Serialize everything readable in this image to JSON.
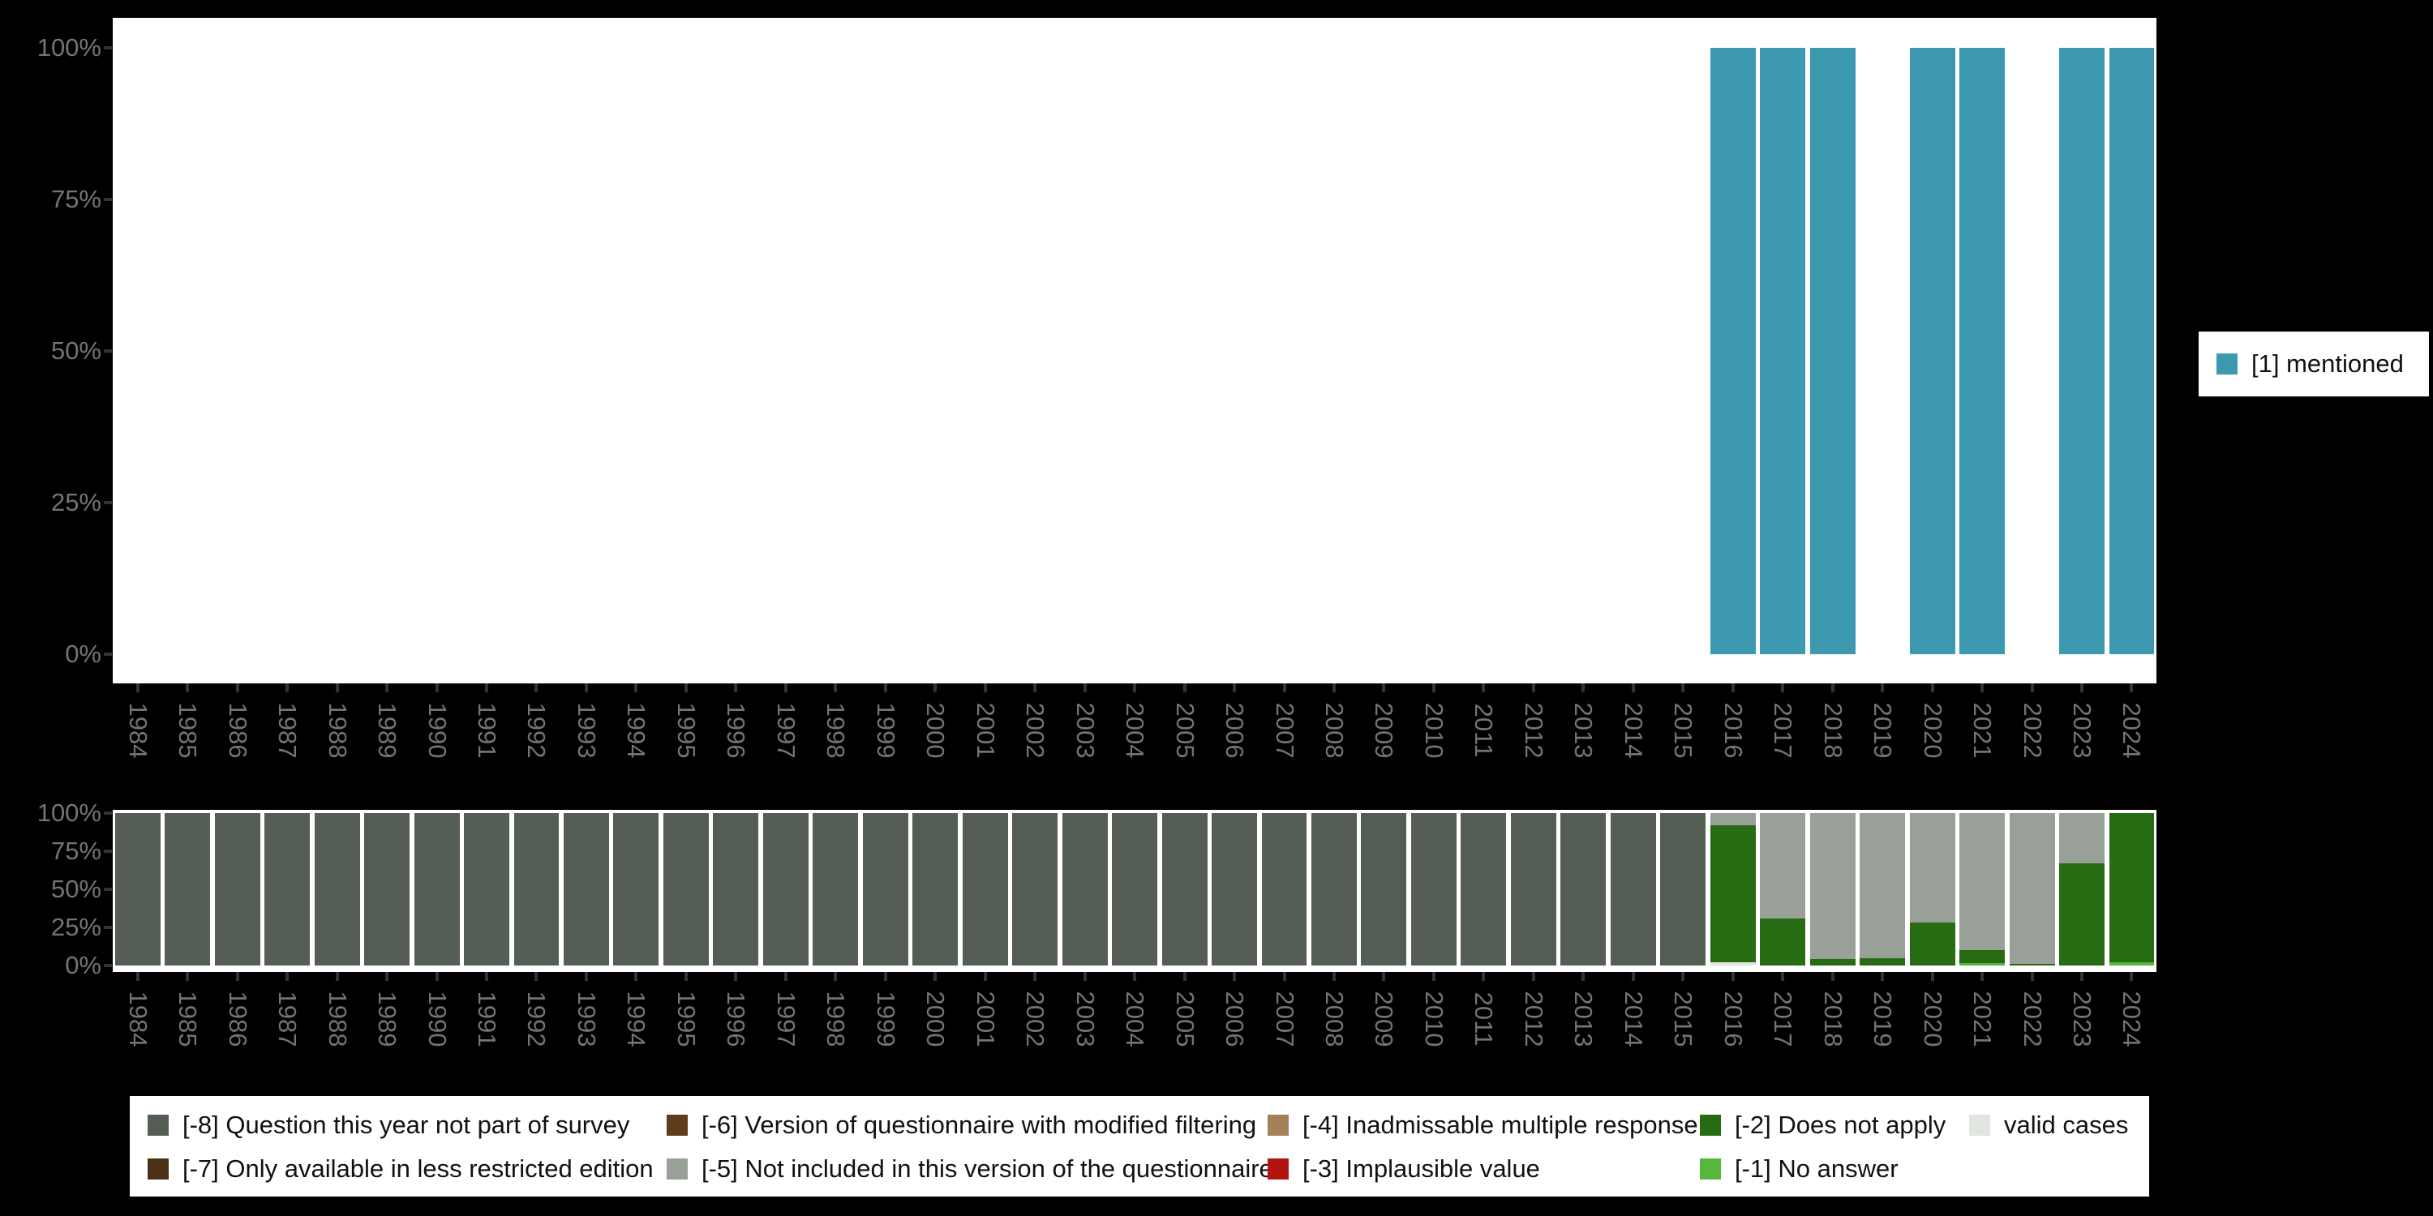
{
  "figure": {
    "background": "#000000",
    "plot_background": "#ffffff"
  },
  "axis": {
    "text_color": "#747474",
    "tick_color": "#333333",
    "y_tick_labels": [
      "100%",
      "75%",
      "50%",
      "25%",
      "0%"
    ]
  },
  "chart_data": [
    {
      "type": "bar",
      "title": "",
      "xlabel": "",
      "ylabel": "",
      "ylim": [
        0,
        100
      ],
      "grid": false,
      "legend_position": "right",
      "categories": [
        1984,
        1985,
        1986,
        1987,
        1988,
        1989,
        1990,
        1991,
        1992,
        1993,
        1994,
        1995,
        1996,
        1997,
        1998,
        1999,
        2000,
        2001,
        2002,
        2003,
        2004,
        2005,
        2006,
        2007,
        2008,
        2009,
        2010,
        2011,
        2012,
        2013,
        2014,
        2015,
        2016,
        2017,
        2018,
        2019,
        2020,
        2021,
        2022,
        2023,
        2024
      ],
      "ytick_labels": [
        "100%",
        "75%",
        "50%",
        "25%",
        "0%"
      ],
      "series": [
        {
          "name": "[1] mentioned",
          "color": "#3D99B0",
          "values": [
            0,
            0,
            0,
            0,
            0,
            0,
            0,
            0,
            0,
            0,
            0,
            0,
            0,
            0,
            0,
            0,
            0,
            0,
            0,
            0,
            0,
            0,
            0,
            0,
            0,
            0,
            0,
            0,
            0,
            0,
            0,
            0,
            100,
            100,
            100,
            0,
            100,
            100,
            0,
            100,
            100
          ]
        }
      ]
    },
    {
      "type": "stacked-bar",
      "title": "",
      "xlabel": "",
      "ylabel": "",
      "ylim": [
        0,
        100
      ],
      "grid": false,
      "legend_position": "bottom",
      "stack_order": "bottom-to-top",
      "categories": [
        1984,
        1985,
        1986,
        1987,
        1988,
        1989,
        1990,
        1991,
        1992,
        1993,
        1994,
        1995,
        1996,
        1997,
        1998,
        1999,
        2000,
        2001,
        2002,
        2003,
        2004,
        2005,
        2006,
        2007,
        2008,
        2009,
        2010,
        2011,
        2012,
        2013,
        2014,
        2015,
        2016,
        2017,
        2018,
        2019,
        2020,
        2021,
        2022,
        2023,
        2024
      ],
      "ytick_labels": [
        "100%",
        "75%",
        "50%",
        "25%",
        "0%"
      ],
      "series": [
        {
          "name": "valid cases",
          "color": "#E2E6E0",
          "values": [
            0,
            0,
            0,
            0,
            0,
            0,
            0,
            0,
            0,
            0,
            0,
            0,
            0,
            0,
            0,
            0,
            0,
            0,
            0,
            0,
            0,
            0,
            0,
            0,
            0,
            0,
            0,
            0,
            0,
            0,
            0,
            0,
            2,
            0,
            0,
            0,
            0,
            0,
            0,
            0,
            0
          ]
        },
        {
          "name": "[-1] No answer",
          "color": "#55B83C",
          "values": [
            0,
            0,
            0,
            0,
            0,
            0,
            0,
            0,
            0,
            0,
            0,
            0,
            0,
            0,
            0,
            0,
            0,
            0,
            0,
            0,
            0,
            0,
            0,
            0,
            0,
            0,
            0,
            0,
            0,
            0,
            0,
            0,
            0,
            0,
            0,
            0,
            0,
            1.5,
            0,
            0,
            2
          ]
        },
        {
          "name": "[-2] Does not apply",
          "color": "#276B12",
          "values": [
            0,
            0,
            0,
            0,
            0,
            0,
            0,
            0,
            0,
            0,
            0,
            0,
            0,
            0,
            0,
            0,
            0,
            0,
            0,
            0,
            0,
            0,
            0,
            0,
            0,
            0,
            0,
            0,
            0,
            0,
            0,
            0,
            90,
            31,
            4,
            5,
            28,
            8.5,
            1,
            67,
            98
          ]
        },
        {
          "name": "[-5] Not included in this version of the questionnaire",
          "color": "#99A098",
          "values": [
            0,
            0,
            0,
            0,
            0,
            0,
            0,
            0,
            0,
            0,
            0,
            0,
            0,
            0,
            0,
            0,
            0,
            0,
            0,
            0,
            0,
            0,
            0,
            0,
            0,
            0,
            0,
            0,
            0,
            0,
            0,
            0,
            8,
            69,
            96,
            95,
            72,
            90,
            99,
            33,
            0
          ]
        },
        {
          "name": "[-8] Question this year not part of survey",
          "color": "#555E54",
          "values": [
            100,
            100,
            100,
            100,
            100,
            100,
            100,
            100,
            100,
            100,
            100,
            100,
            100,
            100,
            100,
            100,
            100,
            100,
            100,
            100,
            100,
            100,
            100,
            100,
            100,
            100,
            100,
            100,
            100,
            100,
            100,
            100,
            0,
            0,
            0,
            0,
            0,
            0,
            0,
            0,
            0
          ]
        }
      ]
    }
  ],
  "legend_top": {
    "items": [
      {
        "label": "[1] mentioned",
        "color": "#3D99B0"
      }
    ]
  },
  "legend_bottom": {
    "columns": [
      [
        {
          "label": "[-8] Question this year not part of survey",
          "color": "#555E54"
        },
        {
          "label": "[-7] Only available in less restricted edition",
          "color": "#4A3116"
        }
      ],
      [
        {
          "label": "[-6] Version of questionnaire with modified filtering",
          "color": "#5F3C1B"
        },
        {
          "label": "[-5] Not included in this version of the questionnaire",
          "color": "#99A098"
        }
      ],
      [
        {
          "label": "[-4] Inadmissable multiple response",
          "color": "#A5815A"
        },
        {
          "label": "[-3] Implausible value",
          "color": "#B2150E"
        }
      ],
      [
        {
          "label": "[-2] Does not apply",
          "color": "#276B12"
        },
        {
          "label": "[-1] No answer",
          "color": "#55B83C"
        }
      ],
      [
        {
          "label": "valid cases",
          "color": "#E2E6E0"
        }
      ]
    ]
  }
}
